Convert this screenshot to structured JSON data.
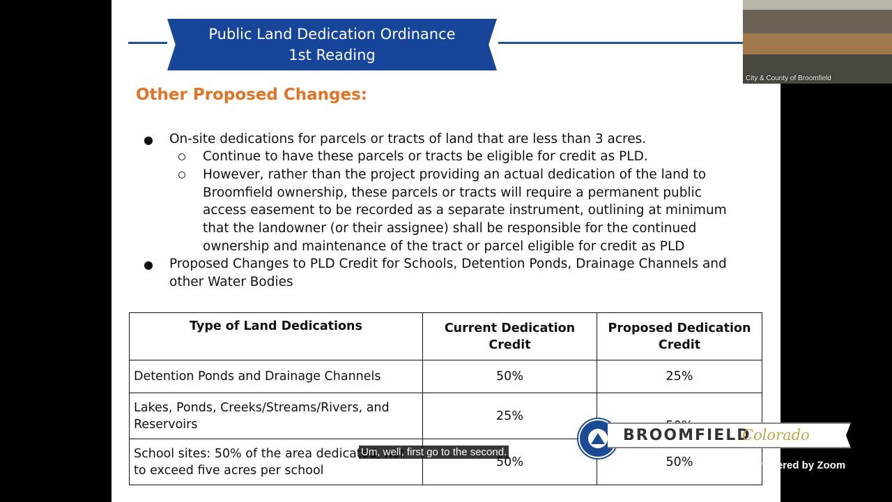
{
  "slide": {
    "banner_line1": "Public Land Dedication Ordinance",
    "banner_line2": "1st Reading",
    "heading": "Other Proposed Changes:",
    "bullet1": [
      "On-site dedications for parcels or tracts of land that are less than 3 acres."
    ],
    "sub1": "Continue to have these parcels or tracts be eligible for credit as PLD.",
    "sub2": [
      "However, rather than the project providing an actual dedication of the land to",
      "Broomfield ownership, these parcels or tracts will require a permanent public",
      "access easement to be recorded as a separate instrument, outlining at minimum",
      "that the landowner (or their assignee) shall be responsible for the continued",
      "ownership and maintenance of the tract or parcel eligible for credit as PLD"
    ],
    "bullet2": [
      "Proposed Changes to PLD Credit for Schools, Detention Ponds, Drainage Channels and",
      "other Water Bodies"
    ],
    "bullet_glyph": "●",
    "sub_glyph": "○",
    "table": {
      "headers": [
        [
          "Type of Land Dedications"
        ],
        [
          "Current Dedication",
          "Credit"
        ],
        [
          "Proposed Dedication",
          "Credit"
        ]
      ],
      "rows": [
        {
          "type": [
            "Detention Ponds and Drainage Channels"
          ],
          "current": "50%",
          "proposed": "25%"
        },
        {
          "type": [
            "Lakes, Ponds, Creeks/Streams/Rivers, and",
            "Reservoirs"
          ],
          "current": "25%",
          "proposed": "50%"
        },
        {
          "type": [
            "School sites: 50% of the area dedicated, not",
            "to exceed five acres per school"
          ],
          "current": "50%",
          "proposed": "50%"
        }
      ]
    }
  },
  "video": {
    "label": "City & County of Broomfield"
  },
  "caption": "Um, well, first go to the second.",
  "logo": {
    "word": "BROOMFIELD",
    "script": "Colorado"
  },
  "zoom": "Powered by Zoom",
  "colors": {
    "banner": "#17459a",
    "heading": "#e07324",
    "logo_gold": "#c6a64a"
  }
}
